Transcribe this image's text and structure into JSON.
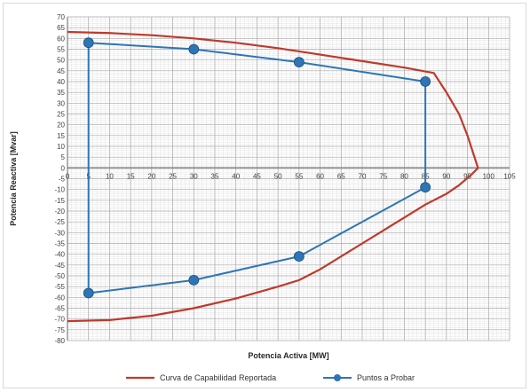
{
  "chart_data": {
    "type": "line",
    "title": "",
    "xlabel": "Potencia Activa [MW]",
    "ylabel": "Potencia Reactiva [Mvar]",
    "xlim": [
      0,
      105
    ],
    "ylim": [
      -80,
      70
    ],
    "x_ticks": [
      0,
      5,
      10,
      15,
      20,
      25,
      30,
      35,
      40,
      45,
      50,
      55,
      60,
      65,
      70,
      75,
      80,
      85,
      90,
      95,
      100,
      105
    ],
    "y_ticks": [
      70,
      65,
      60,
      55,
      50,
      45,
      40,
      35,
      30,
      25,
      20,
      15,
      10,
      5,
      0,
      -5,
      -10,
      -15,
      -20,
      -25,
      -30,
      -35,
      -40,
      -45,
      -50,
      -55,
      -60,
      -65,
      -70,
      -75,
      -80
    ],
    "grid": true,
    "minor_grid": true,
    "legend_position": "bottom",
    "series": [
      {
        "name": "Curva de Capabilidad Reportada",
        "color": "#c0392b",
        "marker": "none",
        "x": [
          0,
          10,
          20,
          30,
          40,
          50,
          60,
          70,
          80,
          87,
          90,
          93,
          95,
          96.5,
          97.5,
          96,
          93,
          90,
          85,
          80,
          75,
          70,
          65,
          60,
          55,
          50,
          40,
          30,
          20,
          10,
          0
        ],
        "y": [
          63,
          62.5,
          61.5,
          60,
          58,
          55.5,
          52.5,
          49.5,
          46.5,
          44,
          35,
          25,
          15,
          6,
          0,
          -3,
          -8,
          -12,
          -17,
          -23,
          -29,
          -35,
          -41,
          -47,
          -52,
          -55,
          -60.5,
          -65,
          -68.5,
          -70.5,
          -71
        ]
      },
      {
        "name": "Puntos a Probar",
        "color": "#2e75b6",
        "marker": "circle",
        "x": [
          5,
          30,
          55,
          85,
          85,
          55,
          30,
          5,
          5
        ],
        "y": [
          58,
          55,
          49,
          40,
          -9,
          -41,
          -52,
          -58,
          58
        ]
      }
    ]
  }
}
